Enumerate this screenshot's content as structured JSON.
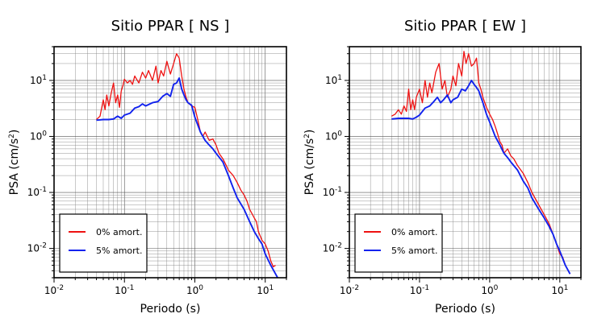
{
  "chart_data": [
    {
      "type": "line",
      "title": "Sitio PPAR [ NS ]",
      "xlabel": "Periodo (s)",
      "ylabel_main": "PSA (cm/s",
      "ylabel_sup": "2",
      "ylabel_close": ")",
      "xscale": "log",
      "yscale": "log",
      "xlim": [
        0.01,
        20
      ],
      "ylim": [
        0.003,
        40
      ],
      "grid": true,
      "legend": "bottom-left",
      "x_ticks": [
        {
          "base": "10",
          "exp": "-2"
        },
        {
          "base": "10",
          "exp": "-1"
        },
        {
          "base": "10",
          "exp": "0"
        },
        {
          "base": "10",
          "exp": "1"
        }
      ],
      "y_ticks": [
        {
          "base": "10",
          "exp": "-2"
        },
        {
          "base": "10",
          "exp": "-1"
        },
        {
          "base": "10",
          "exp": "0"
        },
        {
          "base": "10",
          "exp": "1"
        }
      ],
      "series": [
        {
          "name": "0% amort.",
          "color": "#ee1111",
          "points": [
            [
              0.04,
              2.0
            ],
            [
              0.045,
              2.3
            ],
            [
              0.05,
              4.5
            ],
            [
              0.053,
              3.0
            ],
            [
              0.056,
              5.5
            ],
            [
              0.06,
              3.5
            ],
            [
              0.065,
              6.0
            ],
            [
              0.07,
              9.0
            ],
            [
              0.075,
              4.0
            ],
            [
              0.08,
              5.5
            ],
            [
              0.085,
              3.3
            ],
            [
              0.09,
              6.5
            ],
            [
              0.095,
              8.0
            ],
            [
              0.1,
              10.5
            ],
            [
              0.11,
              9.0
            ],
            [
              0.12,
              10.0
            ],
            [
              0.13,
              8.5
            ],
            [
              0.14,
              12.0
            ],
            [
              0.16,
              9.0
            ],
            [
              0.18,
              14.0
            ],
            [
              0.2,
              11.0
            ],
            [
              0.22,
              15.0
            ],
            [
              0.25,
              10.0
            ],
            [
              0.28,
              18.0
            ],
            [
              0.3,
              9.0
            ],
            [
              0.33,
              15.0
            ],
            [
              0.36,
              12.0
            ],
            [
              0.4,
              22.0
            ],
            [
              0.45,
              13.0
            ],
            [
              0.5,
              20.0
            ],
            [
              0.55,
              30.0
            ],
            [
              0.6,
              25.0
            ],
            [
              0.65,
              12.0
            ],
            [
              0.7,
              7.0
            ],
            [
              0.75,
              5.0
            ],
            [
              0.8,
              4.0
            ],
            [
              0.9,
              3.5
            ],
            [
              1.0,
              3.3
            ],
            [
              1.1,
              2.0
            ],
            [
              1.2,
              1.2
            ],
            [
              1.3,
              1.0
            ],
            [
              1.4,
              1.2
            ],
            [
              1.5,
              1.0
            ],
            [
              1.6,
              0.85
            ],
            [
              1.8,
              0.9
            ],
            [
              2.0,
              0.7
            ],
            [
              2.2,
              0.5
            ],
            [
              2.5,
              0.4
            ],
            [
              2.8,
              0.3
            ],
            [
              3.0,
              0.25
            ],
            [
              3.5,
              0.2
            ],
            [
              4.0,
              0.15
            ],
            [
              4.5,
              0.11
            ],
            [
              5.0,
              0.09
            ],
            [
              5.5,
              0.07
            ],
            [
              6.0,
              0.05
            ],
            [
              7.0,
              0.035
            ],
            [
              7.5,
              0.03
            ],
            [
              8.0,
              0.02
            ],
            [
              9.0,
              0.014
            ],
            [
              10.0,
              0.012
            ],
            [
              11.0,
              0.009
            ],
            [
              12.0,
              0.006
            ],
            [
              13.0,
              0.0047
            ],
            [
              14.0,
              0.005
            ]
          ]
        },
        {
          "name": "5% amort.",
          "color": "#1122ee",
          "points": [
            [
              0.04,
              1.95
            ],
            [
              0.05,
              2.0
            ],
            [
              0.06,
              2.0
            ],
            [
              0.07,
              2.05
            ],
            [
              0.08,
              2.3
            ],
            [
              0.09,
              2.1
            ],
            [
              0.1,
              2.4
            ],
            [
              0.12,
              2.6
            ],
            [
              0.14,
              3.2
            ],
            [
              0.16,
              3.4
            ],
            [
              0.18,
              3.8
            ],
            [
              0.2,
              3.5
            ],
            [
              0.25,
              4.0
            ],
            [
              0.3,
              4.2
            ],
            [
              0.35,
              5.2
            ],
            [
              0.4,
              5.8
            ],
            [
              0.45,
              5.2
            ],
            [
              0.5,
              8.5
            ],
            [
              0.55,
              9.0
            ],
            [
              0.6,
              11.0
            ],
            [
              0.65,
              7.0
            ],
            [
              0.7,
              5.5
            ],
            [
              0.75,
              4.5
            ],
            [
              0.8,
              4.0
            ],
            [
              0.9,
              3.6
            ],
            [
              1.0,
              2.2
            ],
            [
              1.2,
              1.2
            ],
            [
              1.4,
              0.85
            ],
            [
              1.6,
              0.7
            ],
            [
              1.8,
              0.6
            ],
            [
              2.0,
              0.5
            ],
            [
              2.5,
              0.35
            ],
            [
              3.0,
              0.2
            ],
            [
              3.5,
              0.12
            ],
            [
              4.0,
              0.08
            ],
            [
              5.0,
              0.05
            ],
            [
              6.0,
              0.03
            ],
            [
              7.0,
              0.02
            ],
            [
              8.0,
              0.015
            ],
            [
              9.0,
              0.012
            ],
            [
              10.0,
              0.008
            ],
            [
              12.0,
              0.005
            ],
            [
              15.0,
              0.003
            ]
          ]
        }
      ]
    },
    {
      "type": "line",
      "title": "Sitio PPAR [ EW ]",
      "xlabel": "Periodo (s)",
      "ylabel_main": "PSA (cm/s",
      "ylabel_sup": "2",
      "ylabel_close": ")",
      "xscale": "log",
      "yscale": "log",
      "xlim": [
        0.01,
        20
      ],
      "ylim": [
        0.003,
        40
      ],
      "grid": true,
      "legend": "bottom-left",
      "x_ticks": [
        {
          "base": "10",
          "exp": "-2"
        },
        {
          "base": "10",
          "exp": "-1"
        },
        {
          "base": "10",
          "exp": "0"
        },
        {
          "base": "10",
          "exp": "1"
        }
      ],
      "y_ticks": [
        {
          "base": "10",
          "exp": "-2"
        },
        {
          "base": "10",
          "exp": "-1"
        },
        {
          "base": "10",
          "exp": "0"
        },
        {
          "base": "10",
          "exp": "1"
        }
      ],
      "series": [
        {
          "name": "0% amort.",
          "color": "#ee1111",
          "points": [
            [
              0.04,
              2.3
            ],
            [
              0.045,
              2.5
            ],
            [
              0.05,
              3.0
            ],
            [
              0.055,
              2.5
            ],
            [
              0.06,
              3.5
            ],
            [
              0.065,
              2.8
            ],
            [
              0.07,
              7.0
            ],
            [
              0.075,
              3.0
            ],
            [
              0.08,
              4.5
            ],
            [
              0.085,
              3.0
            ],
            [
              0.09,
              5.0
            ],
            [
              0.1,
              7.0
            ],
            [
              0.11,
              4.0
            ],
            [
              0.12,
              10.0
            ],
            [
              0.13,
              5.0
            ],
            [
              0.14,
              9.0
            ],
            [
              0.15,
              6.0
            ],
            [
              0.17,
              14.0
            ],
            [
              0.19,
              20.0
            ],
            [
              0.21,
              7.0
            ],
            [
              0.23,
              10.0
            ],
            [
              0.25,
              5.0
            ],
            [
              0.28,
              7.0
            ],
            [
              0.3,
              12.0
            ],
            [
              0.33,
              8.0
            ],
            [
              0.36,
              20.0
            ],
            [
              0.4,
              12.0
            ],
            [
              0.43,
              33.0
            ],
            [
              0.46,
              20.0
            ],
            [
              0.5,
              30.0
            ],
            [
              0.55,
              18.0
            ],
            [
              0.6,
              20.0
            ],
            [
              0.65,
              25.0
            ],
            [
              0.7,
              9.0
            ],
            [
              0.75,
              7.0
            ],
            [
              0.8,
              5.0
            ],
            [
              0.9,
              3.3
            ],
            [
              1.0,
              2.5
            ],
            [
              1.1,
              2.0
            ],
            [
              1.2,
              1.5
            ],
            [
              1.3,
              1.1
            ],
            [
              1.4,
              0.8
            ],
            [
              1.5,
              0.7
            ],
            [
              1.6,
              0.5
            ],
            [
              1.8,
              0.6
            ],
            [
              2.0,
              0.45
            ],
            [
              2.2,
              0.4
            ],
            [
              2.5,
              0.3
            ],
            [
              3.0,
              0.22
            ],
            [
              3.5,
              0.15
            ],
            [
              4.0,
              0.1
            ],
            [
              5.0,
              0.06
            ],
            [
              6.0,
              0.04
            ],
            [
              7.0,
              0.028
            ],
            [
              8.0,
              0.018
            ],
            [
              9.0,
              0.012
            ],
            [
              10.0,
              0.008
            ],
            [
              11.0,
              0.007
            ],
            [
              12.0,
              0.005
            ],
            [
              14.0,
              0.0035
            ]
          ]
        },
        {
          "name": "5% amort.",
          "color": "#1122ee",
          "points": [
            [
              0.04,
              2.05
            ],
            [
              0.05,
              2.1
            ],
            [
              0.06,
              2.1
            ],
            [
              0.07,
              2.1
            ],
            [
              0.08,
              2.05
            ],
            [
              0.09,
              2.2
            ],
            [
              0.1,
              2.4
            ],
            [
              0.12,
              3.2
            ],
            [
              0.14,
              3.5
            ],
            [
              0.16,
              4.2
            ],
            [
              0.18,
              5.0
            ],
            [
              0.2,
              4.0
            ],
            [
              0.22,
              4.5
            ],
            [
              0.25,
              5.5
            ],
            [
              0.28,
              4.0
            ],
            [
              0.3,
              4.5
            ],
            [
              0.35,
              5.0
            ],
            [
              0.4,
              7.0
            ],
            [
              0.45,
              6.5
            ],
            [
              0.5,
              8.0
            ],
            [
              0.55,
              10.0
            ],
            [
              0.6,
              8.5
            ],
            [
              0.65,
              7.5
            ],
            [
              0.7,
              6.5
            ],
            [
              0.8,
              4.0
            ],
            [
              0.9,
              2.5
            ],
            [
              1.0,
              1.8
            ],
            [
              1.2,
              1.0
            ],
            [
              1.4,
              0.7
            ],
            [
              1.6,
              0.5
            ],
            [
              1.8,
              0.42
            ],
            [
              2.0,
              0.35
            ],
            [
              2.5,
              0.25
            ],
            [
              3.0,
              0.16
            ],
            [
              3.5,
              0.12
            ],
            [
              4.0,
              0.08
            ],
            [
              5.0,
              0.05
            ],
            [
              6.0,
              0.035
            ],
            [
              7.0,
              0.025
            ],
            [
              8.0,
              0.018
            ],
            [
              9.0,
              0.012
            ],
            [
              10.0,
              0.009
            ],
            [
              12.0,
              0.005
            ],
            [
              14.0,
              0.0035
            ]
          ]
        }
      ]
    }
  ]
}
